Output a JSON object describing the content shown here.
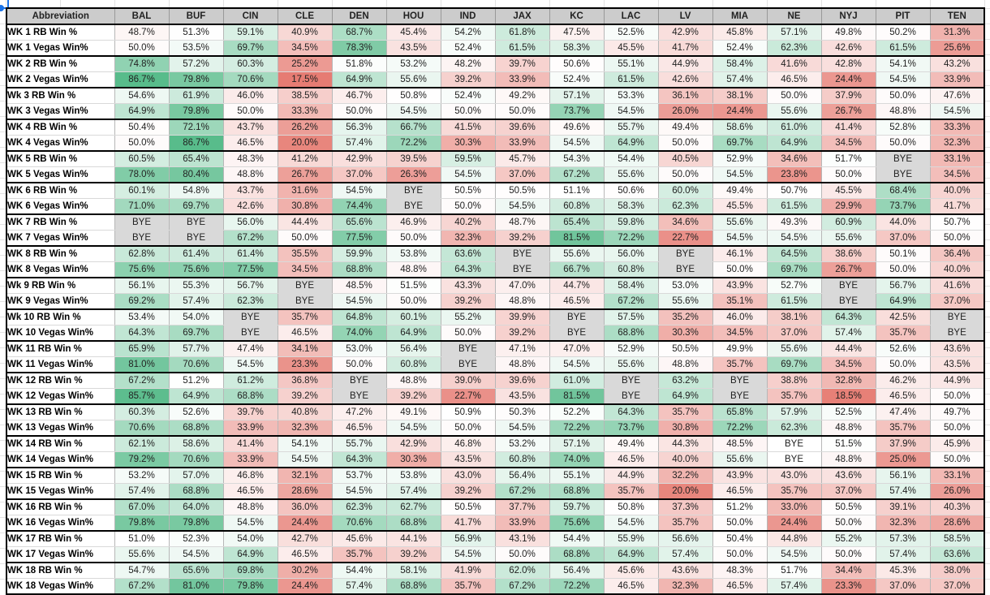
{
  "header": {
    "label": "Abbreviation",
    "teams": [
      "BAL",
      "BUF",
      "CIN",
      "CLE",
      "DEN",
      "HOU",
      "IND",
      "JAX",
      "KC",
      "LAC",
      "LV",
      "MIA",
      "NE",
      "NYJ",
      "PIT",
      "TEN"
    ]
  },
  "rows": [
    {
      "label": "WK 1 RB Win %",
      "values": [
        "48.7%",
        "51.3%",
        "59.1%",
        "40.9%",
        "68.7%",
        "45.4%",
        "54.2%",
        "61.8%",
        "47.5%",
        "52.5%",
        "42.9%",
        "45.8%",
        "57.1%",
        "49.8%",
        "50.2%",
        "31.3%"
      ]
    },
    {
      "label": "WK 1 Vegas Win%",
      "values": [
        "50.0%",
        "53.5%",
        "69.7%",
        "34.5%",
        "78.3%",
        "43.5%",
        "52.4%",
        "61.5%",
        "58.3%",
        "45.5%",
        "41.7%",
        "52.4%",
        "62.3%",
        "42.6%",
        "61.5%",
        "25.6%"
      ]
    },
    {
      "label": "WK 2 RB Win %",
      "values": [
        "74.8%",
        "57.2%",
        "60.3%",
        "25.2%",
        "51.8%",
        "53.2%",
        "48.2%",
        "39.7%",
        "50.6%",
        "55.1%",
        "44.9%",
        "58.4%",
        "41.6%",
        "42.8%",
        "54.1%",
        "43.2%"
      ]
    },
    {
      "label": "WK 2 Vegas Win%",
      "values": [
        "86.7%",
        "79.8%",
        "70.6%",
        "17.5%",
        "64.9%",
        "55.6%",
        "39.2%",
        "33.9%",
        "52.4%",
        "61.5%",
        "42.6%",
        "57.4%",
        "46.5%",
        "24.4%",
        "54.5%",
        "33.9%"
      ]
    },
    {
      "label": "Wk 3 RB Win %",
      "values": [
        "54.6%",
        "61.9%",
        "46.0%",
        "38.5%",
        "46.7%",
        "50.8%",
        "52.4%",
        "49.2%",
        "57.1%",
        "53.3%",
        "36.1%",
        "38.1%",
        "50.0%",
        "37.9%",
        "50.0%",
        "47.6%"
      ]
    },
    {
      "label": "WK 3 Vegas Win%",
      "values": [
        "64.9%",
        "79.8%",
        "50.0%",
        "33.3%",
        "50.0%",
        "54.5%",
        "50.0%",
        "50.0%",
        "73.7%",
        "54.5%",
        "26.0%",
        "24.4%",
        "55.6%",
        "26.7%",
        "48.8%",
        "54.5%"
      ]
    },
    {
      "label": "WK 4 RB Win %",
      "values": [
        "50.4%",
        "72.1%",
        "43.7%",
        "26.2%",
        "56.3%",
        "66.7%",
        "41.5%",
        "39.6%",
        "49.6%",
        "55.7%",
        "49.4%",
        "58.6%",
        "61.0%",
        "41.4%",
        "52.8%",
        "33.3%"
      ]
    },
    {
      "label": "WK 4 Vegas Win%",
      "values": [
        "50.0%",
        "86.7%",
        "46.5%",
        "20.0%",
        "57.4%",
        "72.2%",
        "30.3%",
        "33.9%",
        "54.5%",
        "64.9%",
        "50.0%",
        "69.7%",
        "64.9%",
        "34.5%",
        "50.0%",
        "32.3%"
      ]
    },
    {
      "label": "WK 5 RB Win %",
      "values": [
        "60.5%",
        "65.4%",
        "48.3%",
        "41.2%",
        "42.9%",
        "39.5%",
        "59.5%",
        "45.7%",
        "54.3%",
        "54.4%",
        "40.5%",
        "52.9%",
        "34.6%",
        "51.7%",
        "BYE",
        "33.1%"
      ]
    },
    {
      "label": "WK 5 Vegas Win%",
      "values": [
        "78.0%",
        "80.4%",
        "48.8%",
        "26.7%",
        "37.0%",
        "26.3%",
        "54.5%",
        "37.0%",
        "67.2%",
        "55.6%",
        "50.0%",
        "54.5%",
        "23.8%",
        "50.0%",
        "BYE",
        "34.5%"
      ]
    },
    {
      "label": "WK 6 RB Win %",
      "values": [
        "60.1%",
        "54.8%",
        "43.7%",
        "31.6%",
        "54.5%",
        "BYE",
        "50.5%",
        "50.5%",
        "51.1%",
        "50.6%",
        "60.0%",
        "49.4%",
        "50.7%",
        "45.5%",
        "68.4%",
        "40.0%"
      ]
    },
    {
      "label": "WK 6 Vegas Win%",
      "values": [
        "71.0%",
        "69.7%",
        "42.6%",
        "30.8%",
        "74.4%",
        "BYE",
        "50.0%",
        "54.5%",
        "60.8%",
        "58.3%",
        "62.3%",
        "45.5%",
        "61.5%",
        "29.9%",
        "73.7%",
        "41.7%"
      ]
    },
    {
      "label": "WK 7 RB Win %",
      "values": [
        "BYE",
        "BYE",
        "56.0%",
        "44.4%",
        "65.6%",
        "46.9%",
        "40.2%",
        "48.7%",
        "65.4%",
        "59.8%",
        "34.6%",
        "55.6%",
        "49.3%",
        "60.9%",
        "44.0%",
        "50.7%"
      ]
    },
    {
      "label": "WK 7 Vegas Win%",
      "values": [
        "BYE",
        "BYE",
        "67.2%",
        "50.0%",
        "77.5%",
        "50.0%",
        "32.3%",
        "39.2%",
        "81.5%",
        "72.2%",
        "22.7%",
        "54.5%",
        "54.5%",
        "55.6%",
        "37.0%",
        "50.0%"
      ]
    },
    {
      "label": "WK 8 RB Win %",
      "values": [
        "62.8%",
        "61.4%",
        "61.4%",
        "35.5%",
        "59.9%",
        "53.8%",
        "63.6%",
        "BYE",
        "55.6%",
        "56.0%",
        "BYE",
        "46.1%",
        "64.5%",
        "38.6%",
        "50.1%",
        "36.4%"
      ]
    },
    {
      "label": "WK 8 Vegas Win%",
      "values": [
        "75.6%",
        "75.6%",
        "77.5%",
        "34.5%",
        "68.8%",
        "48.8%",
        "64.3%",
        "BYE",
        "66.7%",
        "60.8%",
        "BYE",
        "50.0%",
        "69.7%",
        "26.7%",
        "50.0%",
        "40.0%"
      ]
    },
    {
      "label": "Wk 9 RB Win %",
      "values": [
        "56.1%",
        "55.3%",
        "56.7%",
        "BYE",
        "48.5%",
        "51.5%",
        "43.3%",
        "47.0%",
        "44.7%",
        "58.4%",
        "53.0%",
        "43.9%",
        "52.7%",
        "BYE",
        "56.7%",
        "41.6%"
      ]
    },
    {
      "label": "WK 9 Vegas Win%",
      "values": [
        "69.2%",
        "57.4%",
        "62.3%",
        "BYE",
        "54.5%",
        "50.0%",
        "39.2%",
        "48.8%",
        "46.5%",
        "67.2%",
        "55.6%",
        "35.1%",
        "61.5%",
        "BYE",
        "64.9%",
        "37.0%"
      ]
    },
    {
      "label": "Wk 10 RB Win %",
      "values": [
        "53.4%",
        "54.0%",
        "BYE",
        "35.7%",
        "64.8%",
        "60.1%",
        "55.2%",
        "39.9%",
        "BYE",
        "57.5%",
        "35.2%",
        "46.0%",
        "38.1%",
        "64.3%",
        "42.5%",
        "BYE"
      ]
    },
    {
      "label": "WK 10 Vegas Win%",
      "values": [
        "64.3%",
        "69.7%",
        "BYE",
        "46.5%",
        "74.0%",
        "64.9%",
        "50.0%",
        "39.2%",
        "BYE",
        "68.8%",
        "30.3%",
        "34.5%",
        "37.0%",
        "57.4%",
        "35.7%",
        "BYE"
      ]
    },
    {
      "label": "WK 11 RB Win %",
      "values": [
        "65.9%",
        "57.7%",
        "47.4%",
        "34.1%",
        "53.0%",
        "56.4%",
        "BYE",
        "47.1%",
        "47.0%",
        "52.9%",
        "50.5%",
        "49.9%",
        "55.6%",
        "44.4%",
        "52.6%",
        "43.6%"
      ]
    },
    {
      "label": "WK 11 Vegas Win%",
      "values": [
        "81.0%",
        "70.6%",
        "54.5%",
        "23.3%",
        "50.0%",
        "60.8%",
        "BYE",
        "48.8%",
        "54.5%",
        "55.6%",
        "48.8%",
        "35.7%",
        "69.7%",
        "34.5%",
        "50.0%",
        "43.5%"
      ]
    },
    {
      "label": "WK 12 RB Win %",
      "values": [
        "67.2%",
        "51.2%",
        "61.2%",
        "36.8%",
        "BYE",
        "48.8%",
        "39.0%",
        "39.6%",
        "61.0%",
        "BYE",
        "63.2%",
        "BYE",
        "38.8%",
        "32.8%",
        "46.2%",
        "44.9%"
      ]
    },
    {
      "label": "WK 12 Vegas Win%",
      "values": [
        "85.7%",
        "64.9%",
        "68.8%",
        "39.2%",
        "BYE",
        "39.2%",
        "22.7%",
        "43.5%",
        "81.5%",
        "BYE",
        "64.9%",
        "BYE",
        "35.7%",
        "18.5%",
        "46.5%",
        "50.0%"
      ]
    },
    {
      "label": "WK 13 RB Win %",
      "values": [
        "60.3%",
        "52.6%",
        "39.7%",
        "40.8%",
        "47.2%",
        "49.1%",
        "50.9%",
        "50.3%",
        "52.2%",
        "64.3%",
        "35.7%",
        "65.8%",
        "57.9%",
        "52.5%",
        "47.4%",
        "49.7%"
      ]
    },
    {
      "label": "WK 13 Vegas Win%",
      "values": [
        "70.6%",
        "68.8%",
        "33.9%",
        "32.3%",
        "46.5%",
        "54.5%",
        "50.0%",
        "54.5%",
        "72.2%",
        "73.7%",
        "30.8%",
        "72.2%",
        "62.3%",
        "48.8%",
        "35.7%",
        "50.0%"
      ]
    },
    {
      "label": "WK 14 RB Win %",
      "values": [
        "62.1%",
        "58.6%",
        "41.4%",
        "54.1%",
        "55.7%",
        "42.9%",
        "46.8%",
        "53.2%",
        "57.1%",
        "49.4%",
        "44.3%",
        "48.5%",
        "BYE",
        "51.5%",
        "37.9%",
        "45.9%"
      ]
    },
    {
      "label": "WK 14 Vegas Win%",
      "values": [
        "79.2%",
        "70.6%",
        "33.9%",
        "54.5%",
        "64.3%",
        "30.3%",
        "43.5%",
        "60.8%",
        "74.0%",
        "46.5%",
        "40.0%",
        "55.6%",
        "BYE",
        "48.8%",
        "25.0%",
        "50.0%"
      ]
    },
    {
      "label": "WK 15 RB Win %",
      "values": [
        "53.2%",
        "57.0%",
        "46.8%",
        "32.1%",
        "53.7%",
        "53.8%",
        "43.0%",
        "56.4%",
        "55.1%",
        "44.9%",
        "32.2%",
        "43.9%",
        "43.0%",
        "43.6%",
        "56.1%",
        "33.1%"
      ]
    },
    {
      "label": "WK 15 Vegas Win%",
      "values": [
        "57.4%",
        "68.8%",
        "46.5%",
        "28.6%",
        "54.5%",
        "57.4%",
        "39.2%",
        "67.2%",
        "68.8%",
        "35.7%",
        "20.0%",
        "46.5%",
        "35.7%",
        "37.0%",
        "57.4%",
        "26.0%"
      ]
    },
    {
      "label": "WK 16 RB Win %",
      "values": [
        "67.0%",
        "64.0%",
        "48.8%",
        "36.0%",
        "62.3%",
        "62.7%",
        "50.5%",
        "37.7%",
        "59.7%",
        "50.8%",
        "37.3%",
        "51.2%",
        "33.0%",
        "50.5%",
        "39.1%",
        "40.3%"
      ]
    },
    {
      "label": "WK 16 Vegas Win%",
      "values": [
        "79.8%",
        "79.8%",
        "54.5%",
        "24.4%",
        "70.6%",
        "68.8%",
        "41.7%",
        "33.9%",
        "75.6%",
        "54.5%",
        "35.7%",
        "50.0%",
        "24.4%",
        "50.0%",
        "32.3%",
        "28.6%"
      ]
    },
    {
      "label": "WK 17 RB Win %",
      "values": [
        "51.0%",
        "52.3%",
        "54.0%",
        "42.7%",
        "45.6%",
        "44.1%",
        "56.9%",
        "43.1%",
        "54.4%",
        "55.9%",
        "56.6%",
        "50.4%",
        "44.8%",
        "55.2%",
        "57.3%",
        "58.5%"
      ]
    },
    {
      "label": "WK 17 Vegas Win%",
      "values": [
        "55.6%",
        "54.5%",
        "64.9%",
        "46.5%",
        "35.7%",
        "39.2%",
        "54.5%",
        "50.0%",
        "68.8%",
        "64.9%",
        "57.4%",
        "50.0%",
        "54.5%",
        "50.0%",
        "57.4%",
        "63.6%"
      ]
    },
    {
      "label": "WK 18 RB Win %",
      "values": [
        "54.7%",
        "65.6%",
        "69.8%",
        "30.2%",
        "54.4%",
        "58.1%",
        "41.9%",
        "62.0%",
        "56.4%",
        "45.6%",
        "43.6%",
        "48.3%",
        "51.7%",
        "34.4%",
        "45.3%",
        "38.0%"
      ]
    },
    {
      "label": "WK 18 Vegas Win%",
      "values": [
        "67.2%",
        "81.0%",
        "79.8%",
        "24.4%",
        "57.4%",
        "68.8%",
        "35.7%",
        "67.2%",
        "72.2%",
        "46.5%",
        "32.3%",
        "46.5%",
        "57.4%",
        "23.3%",
        "37.0%",
        "37.0%"
      ]
    }
  ],
  "colors": {
    "high": "#57bb8a",
    "mid": "#ffffff",
    "low": "#e67c73",
    "bye": "#d9d9d9",
    "header_bg": "#cccccc"
  },
  "bye_white_cells": [
    "NE-WK14"
  ]
}
